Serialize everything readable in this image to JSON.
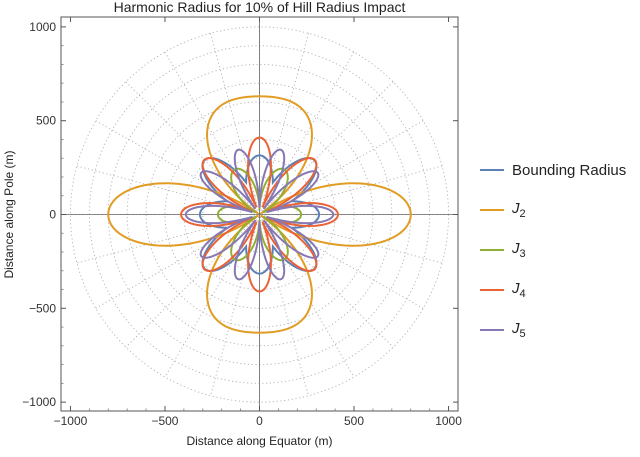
{
  "chart_data": {
    "type": "polar-line",
    "title": "Harmonic Radius for 10% of Hill Radius Impact",
    "xlabel": "Distance along Equator (m)",
    "ylabel": "Distance along Pole (m)",
    "xlim": [
      -1050,
      1050
    ],
    "ylim": [
      -1050,
      1050
    ],
    "xticks": [
      -1000,
      -500,
      0,
      500,
      1000
    ],
    "yticks": [
      -1000,
      -500,
      0,
      500,
      1000
    ],
    "xtick_labels": [
      "−1000",
      "−500",
      "0",
      "500",
      "1000"
    ],
    "ytick_labels": [
      "−1000",
      "−500",
      "0",
      "500",
      "1000"
    ],
    "grid": "polar dotted, radial spacing 100 m, angular spacing 15 deg",
    "legend_position": "right",
    "series": [
      {
        "name": "Bounding Radius",
        "label_text": "Bounding Radius",
        "color": "#5e81b5",
        "degree": 0,
        "equator_radius": 315,
        "pole_radius": 315,
        "lobe_peak_radius": 410
      },
      {
        "name": "J2",
        "label_text": "J",
        "sub": "2",
        "color": "#e19c24",
        "degree": 2,
        "equator_radius": 800,
        "pole_radius": 630,
        "lobe_peak_radius": 800
      },
      {
        "name": "J3",
        "label_text": "J",
        "sub": "3",
        "color": "#8fb032",
        "degree": 3,
        "equator_radius": 220,
        "pole_radius": 290,
        "lobe_peak_radius": 300
      },
      {
        "name": "J4",
        "label_text": "J",
        "sub": "4",
        "color": "#eb6235",
        "degree": 4,
        "equator_radius": 415,
        "pole_radius": 410,
        "lobe_peak_radius": 415
      },
      {
        "name": "J5",
        "label_text": "J",
        "sub": "5",
        "color": "#8778b3",
        "degree": 5,
        "equator_radius": 390,
        "pole_radius": 360,
        "lobe_peak_radius": 400
      }
    ]
  }
}
